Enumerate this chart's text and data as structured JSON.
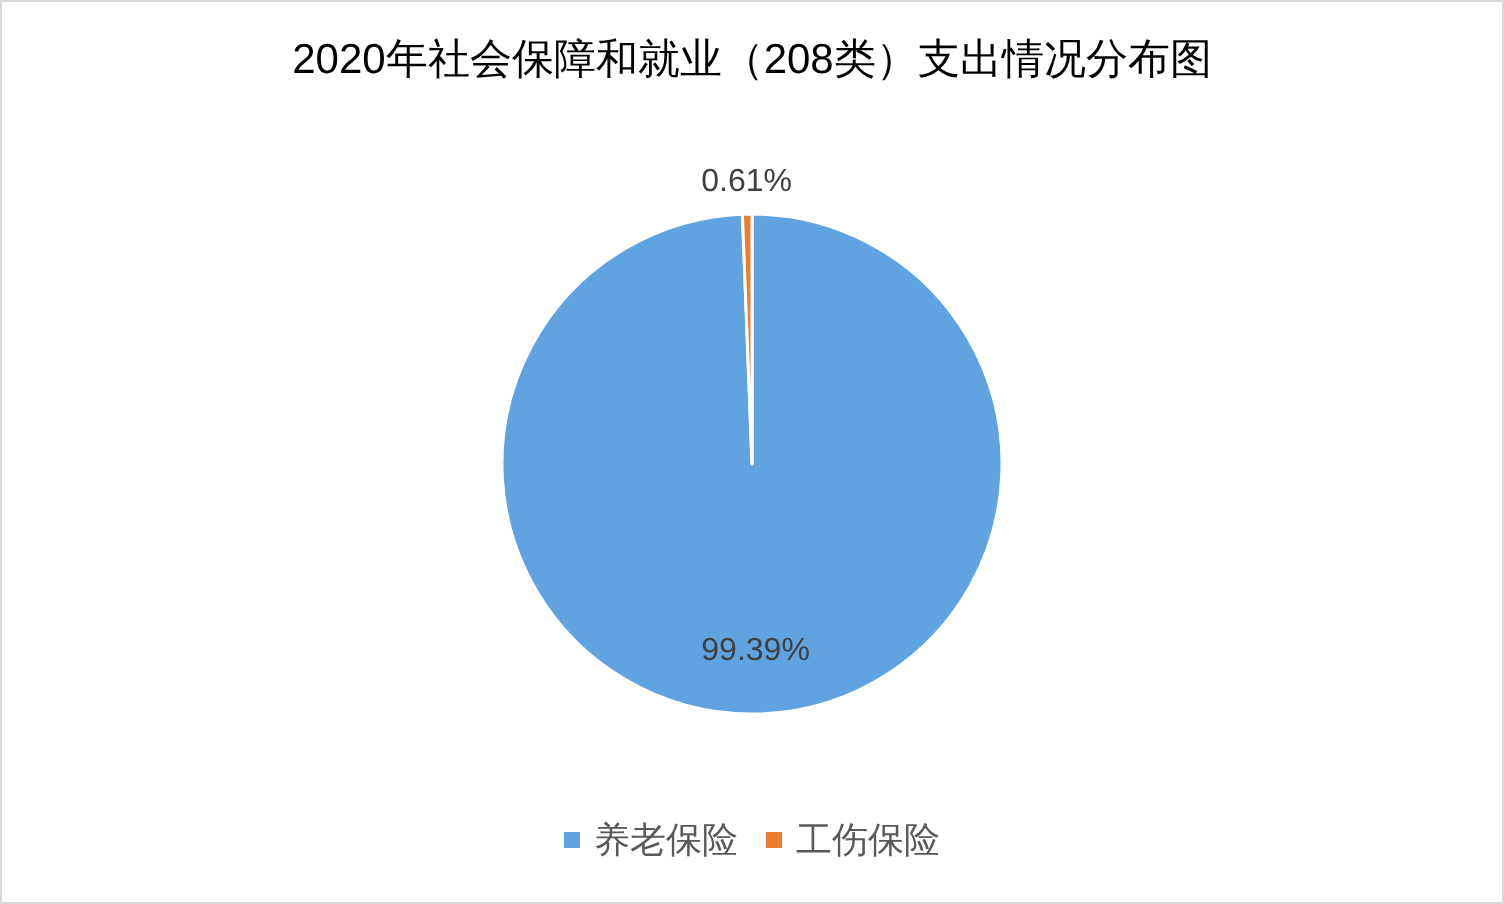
{
  "chart_data": {
    "type": "pie",
    "title": "2020年社会保障和就业（208类）支出情况分布图",
    "categories": [
      "养老保险",
      "工伤保险"
    ],
    "values": [
      99.39,
      0.61
    ],
    "colors": [
      "#5fa3e0",
      "#ed7d31"
    ],
    "value_labels": [
      "99.39%",
      "0.61%"
    ],
    "legend": "bottom"
  }
}
